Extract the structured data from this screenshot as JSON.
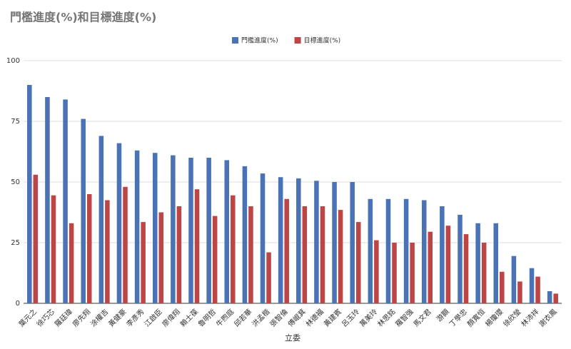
{
  "chart_data": {
    "type": "bar",
    "title": "門檻進度(%)和目標進度(%)",
    "x_label": "立委",
    "categories": [
      "葉元之",
      "徐巧芯",
      "羅廷瑋",
      "廖先翔",
      "涂權吉",
      "黃健豪",
      "李彥秀",
      "江啟臣",
      "廖偉翔",
      "賴士葆",
      "魯明哲",
      "牛煦庭",
      "邱若華",
      "洪孟楷",
      "張智倫",
      "傅崐萁",
      "林德福",
      "黃建賓",
      "呂玉玲",
      "萬美玲",
      "林思銘",
      "羅智強",
      "馬文君",
      "游顥",
      "丁學忠",
      "顏寬恒",
      "楊瓊瓔",
      "徐欣瑩",
      "林沛祥",
      "謝衣鳳"
    ],
    "series": [
      {
        "name": "門檻進度(%)",
        "color": "#4a73b5",
        "values": [
          90,
          85,
          84,
          76,
          69,
          66,
          63,
          62,
          61,
          60,
          60,
          59,
          56.5,
          53.5,
          52,
          51.5,
          50.5,
          50,
          50,
          43,
          43,
          43,
          42.5,
          40,
          36.5,
          33,
          33,
          19.5,
          14.5,
          5
        ]
      },
      {
        "name": "目標進度(%)",
        "color": "#bd4545",
        "values": [
          53,
          44.5,
          33,
          45,
          42.5,
          48,
          33.5,
          37.5,
          40,
          47,
          36,
          44.5,
          40,
          21,
          43,
          40,
          40,
          38.5,
          33.5,
          26,
          25,
          25,
          29.5,
          32,
          28.5,
          25,
          13,
          9,
          11,
          4
        ]
      }
    ],
    "ylim": [
      0,
      100
    ],
    "yticks": [
      0,
      25,
      50,
      75,
      100
    ],
    "grid": true,
    "legend": "top"
  }
}
